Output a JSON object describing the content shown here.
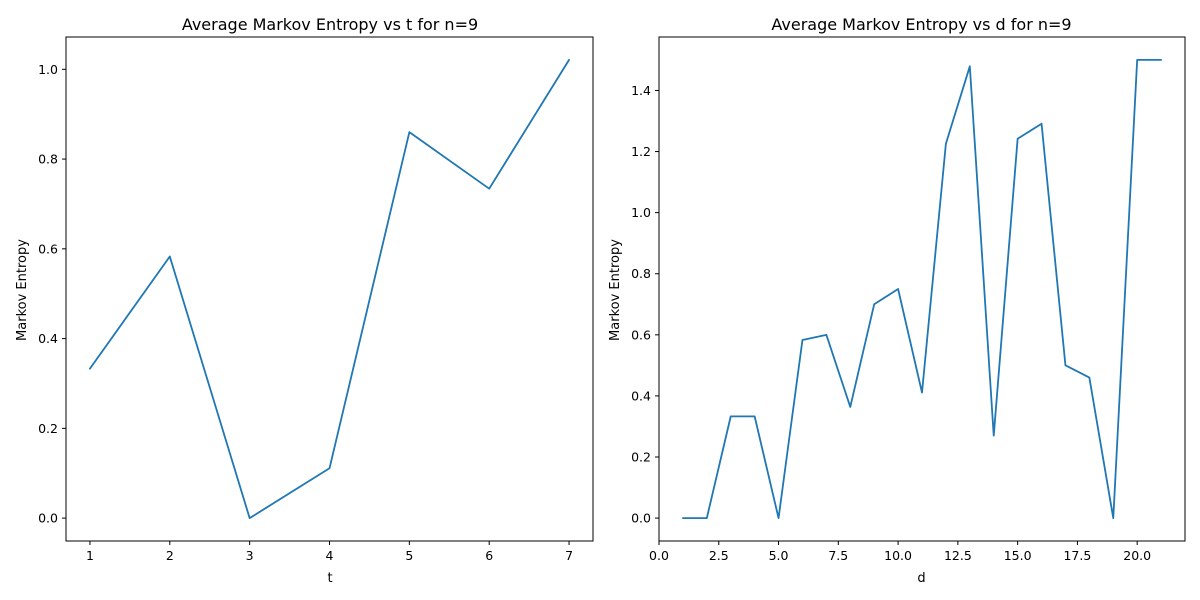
{
  "chart_data": [
    {
      "type": "line",
      "title": "Average Markov Entropy vs t for n=9",
      "xlabel": "t",
      "ylabel": "Markov Entropy",
      "x": [
        1,
        2,
        3,
        4,
        5,
        6,
        7
      ],
      "series": [
        {
          "values": [
            0.333,
            0.583,
            0.0,
            0.111,
            0.86,
            0.734,
            1.021
          ],
          "color": "#1f77b4"
        }
      ],
      "xlim": [
        0.7,
        7.3
      ],
      "ylim": [
        -0.051,
        1.072
      ],
      "xticks": [
        1,
        2,
        3,
        4,
        5,
        6,
        7
      ],
      "xtick_labels": [
        "1",
        "2",
        "3",
        "4",
        "5",
        "6",
        "7"
      ],
      "yticks": [
        0.0,
        0.2,
        0.4,
        0.6,
        0.8,
        1.0
      ],
      "ytick_labels": [
        "0.0",
        "0.2",
        "0.4",
        "0.6",
        "0.8",
        "1.0"
      ],
      "grid": false,
      "legend": "none"
    },
    {
      "type": "line",
      "title": "Average Markov Entropy vs d for n=9",
      "xlabel": "d",
      "ylabel": "Markov Entropy",
      "x": [
        1,
        2,
        3,
        4,
        5,
        6,
        7,
        8,
        9,
        10,
        11,
        12,
        13,
        14,
        15,
        16,
        17,
        18,
        19,
        20,
        21
      ],
      "series": [
        {
          "values": [
            0.0,
            0.0,
            0.333,
            0.333,
            0.0,
            0.583,
            0.6,
            0.364,
            0.7,
            0.75,
            0.411,
            1.226,
            1.479,
            0.27,
            1.242,
            1.291,
            0.5,
            0.46,
            0.0,
            1.5,
            1.5
          ],
          "color": "#1f77b4"
        }
      ],
      "xlim": [
        0.0,
        22.0
      ],
      "ylim": [
        -0.075,
        1.575
      ],
      "xticks": [
        0.0,
        2.5,
        5.0,
        7.5,
        10.0,
        12.5,
        15.0,
        17.5,
        20.0
      ],
      "xtick_labels": [
        "0.0",
        "2.5",
        "5.0",
        "7.5",
        "10.0",
        "12.5",
        "15.0",
        "17.5",
        "20.0"
      ],
      "yticks": [
        0.0,
        0.2,
        0.4,
        0.6,
        0.8,
        1.0,
        1.2,
        1.4
      ],
      "ytick_labels": [
        "0.0",
        "0.2",
        "0.4",
        "0.6",
        "0.8",
        "1.0",
        "1.2",
        "1.4"
      ],
      "grid": false,
      "legend": "none"
    }
  ]
}
